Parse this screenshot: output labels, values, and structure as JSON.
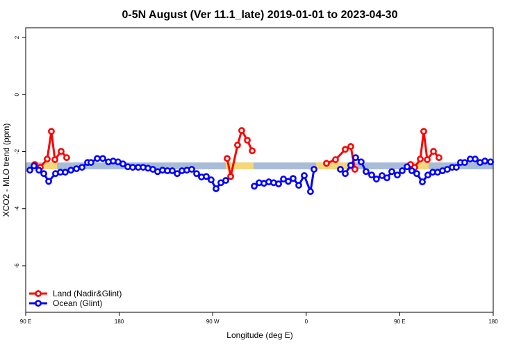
{
  "chart_data": {
    "type": "line",
    "title": "0-5N August (Ver 11.1_late)   2019-01-01 to 2023-04-30",
    "x_label": "Longitude (deg E)",
    "y_label": "XCO2 - MLO trend (ppm)",
    "xlim": [
      90,
      540
    ],
    "ylim": [
      -7.63,
      2.34
    ],
    "xticks": [
      {
        "value": 90,
        "label": "90 E"
      },
      {
        "value": 180,
        "label": "180"
      },
      {
        "value": 270,
        "label": "90 W"
      },
      {
        "value": 360,
        "label": "0"
      },
      {
        "value": 450,
        "label": "90 E"
      },
      {
        "value": 540,
        "label": "180"
      }
    ],
    "yticks": [
      -6,
      -4,
      -2,
      0,
      2
    ],
    "legend": "bottomleft",
    "bands": [
      {
        "xlim": [
          90,
          540
        ],
        "ylim": [
          -2.62,
          -2.38
        ],
        "color": "#a8bcd8"
      },
      {
        "xlim": [
          106.7,
          120.1
        ],
        "ylim": [
          -2.62,
          -2.38
        ],
        "color": "#f5d77a"
      },
      {
        "xlim": [
          282.6,
          309.3
        ],
        "ylim": [
          -2.62,
          -2.38
        ],
        "color": "#f5d77a"
      },
      {
        "xlim": [
          369.5,
          399.6
        ],
        "ylim": [
          -2.62,
          -2.38
        ],
        "color": "#f5d77a"
      },
      {
        "xlim": [
          464.4,
          477.8
        ],
        "ylim": [
          -2.62,
          -2.38
        ],
        "color": "#f5d77a"
      }
    ],
    "series": [
      {
        "name": "Land (Nadir&Glint)",
        "color": "#ff0000",
        "x": [
          98.7,
          104.0,
          110.7,
          114.7,
          118.1,
          124.1,
          129.4,
          null,
          283.9,
          287.3,
          293.9,
          297.9,
          303.3,
          308.0,
          null,
          379.5,
          388.2,
          397.6,
          402.9,
          406.9,
          null,
          460.4,
          464.4,
          469.8,
          473.1,
          476.5,
          482.5,
          487.8
        ],
        "values": [
          -2.45,
          -2.55,
          -2.26,
          -1.29,
          -2.28,
          -1.99,
          -2.21,
          null,
          -2.24,
          -2.87,
          -1.77,
          -1.26,
          -1.6,
          -1.97,
          null,
          -2.41,
          -2.28,
          -1.92,
          -1.82,
          -2.62,
          null,
          -2.45,
          -2.55,
          -2.26,
          -1.29,
          -2.28,
          -1.99,
          -2.21
        ]
      },
      {
        "name": "Ocean (Glint)",
        "color": "#0000ff",
        "x": [
          94.0,
          98.0,
          102.7,
          107.4,
          112.1,
          118.7,
          123.4,
          128.1,
          133.5,
          138.8,
          144.2,
          149.5,
          152.8,
          158.9,
          164.2,
          169.6,
          174.2,
          178.9,
          183.6,
          188.3,
          193.0,
          198.3,
          203.0,
          207.7,
          212.4,
          217.0,
          221.7,
          226.4,
          231.1,
          235.8,
          240.4,
          245.1,
          249.8,
          254.5,
          259.2,
          263.8,
          268.5,
          273.2,
          277.9,
          282.6,
          null,
          310.0,
          314.7,
          319.3,
          324.0,
          328.7,
          333.4,
          338.1,
          342.7,
          347.4,
          352.8,
          358.1,
          364.1,
          367.5,
          null,
          392.9,
          397.6,
          402.9,
          407.6,
          412.9,
          417.6,
          423.0,
          427.6,
          433.0,
          437.7,
          442.4,
          447.7,
          452.4,
          457.1,
          461.7,
          466.4,
          471.8,
          477.1,
          481.8,
          486.5,
          491.2,
          495.8,
          500.5,
          504.5,
          508.5,
          512.6,
          517.9,
          522.6,
          527.3,
          532.0,
          537.4
        ],
        "values": [
          -2.65,
          -2.5,
          -2.65,
          -2.77,
          -3.04,
          -2.77,
          -2.72,
          -2.72,
          -2.65,
          -2.6,
          -2.55,
          -2.38,
          -2.38,
          -2.24,
          -2.24,
          -2.36,
          -2.33,
          -2.36,
          -2.43,
          -2.53,
          -2.55,
          -2.55,
          -2.55,
          -2.58,
          -2.62,
          -2.7,
          -2.65,
          -2.67,
          -2.67,
          -2.77,
          -2.67,
          -2.65,
          -2.62,
          -2.77,
          -2.89,
          -2.87,
          -2.99,
          -3.3,
          -3.09,
          -3.01,
          null,
          -3.21,
          -3.09,
          -3.11,
          -3.06,
          -3.09,
          -3.13,
          -2.96,
          -3.04,
          -2.94,
          -3.18,
          -2.84,
          -3.4,
          -2.62,
          null,
          -2.62,
          -2.77,
          -2.48,
          -2.21,
          -2.36,
          -2.7,
          -2.82,
          -2.96,
          -2.84,
          -2.92,
          -2.7,
          -2.82,
          -2.67,
          -2.53,
          -2.67,
          -2.77,
          -3.06,
          -2.82,
          -2.72,
          -2.72,
          -2.67,
          -2.62,
          -2.55,
          -2.55,
          -2.38,
          -2.38,
          -2.26,
          -2.26,
          -2.38,
          -2.33,
          -2.36
        ]
      }
    ]
  }
}
